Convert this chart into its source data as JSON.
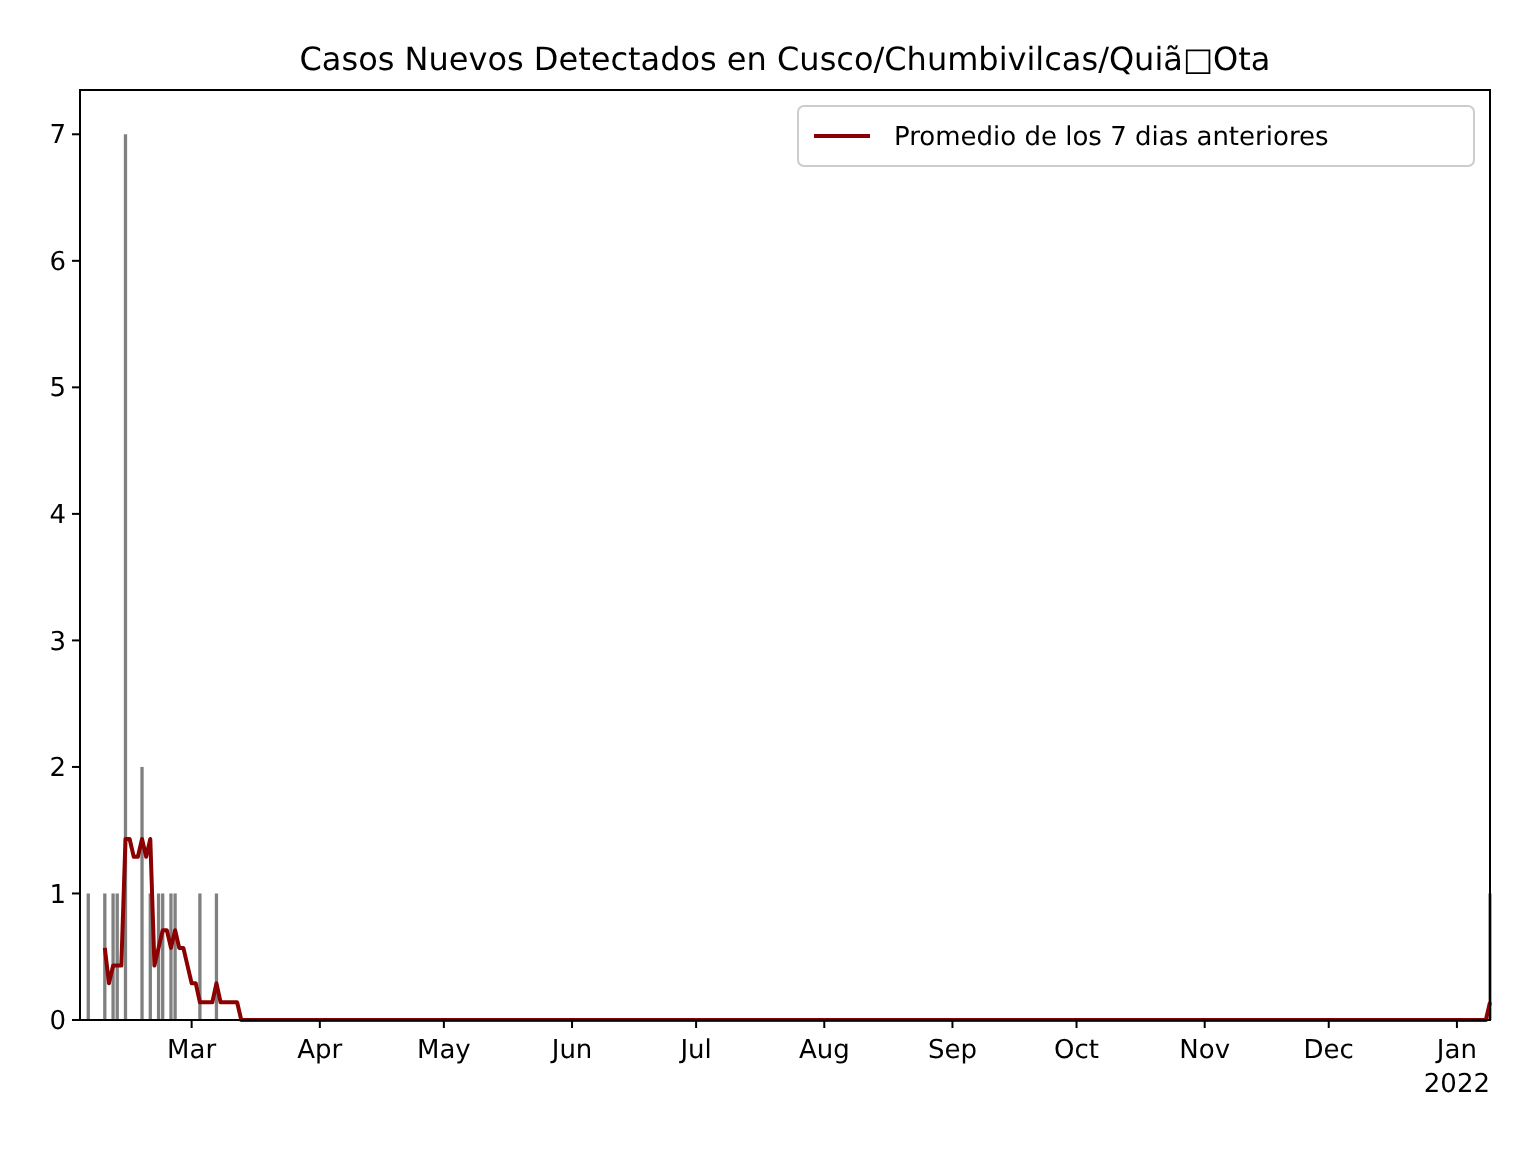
{
  "chart_data": {
    "type": "bar",
    "title": "Casos Nuevos Detectados en Cusco/Chumbivilcas/Quiã□Ota",
    "xlim": [
      "2021-02-02",
      "2022-01-09"
    ],
    "xticks": [
      {
        "value": "2021-03-01",
        "label": "Mar"
      },
      {
        "value": "2021-04-01",
        "label": "Apr"
      },
      {
        "value": "2021-05-01",
        "label": "May"
      },
      {
        "value": "2021-06-01",
        "label": "Jun"
      },
      {
        "value": "2021-07-01",
        "label": "Jul"
      },
      {
        "value": "2021-08-01",
        "label": "Aug"
      },
      {
        "value": "2021-09-01",
        "label": "Sep"
      },
      {
        "value": "2021-10-01",
        "label": "Oct"
      },
      {
        "value": "2021-11-01",
        "label": "Nov"
      },
      {
        "value": "2021-12-01",
        "label": "Dec"
      },
      {
        "value": "2022-01-01",
        "label": "Jan\n2022"
      }
    ],
    "ylim": [
      0,
      7.35
    ],
    "yticks": [
      0,
      1,
      2,
      3,
      4,
      5,
      6,
      7
    ],
    "legend": "top right",
    "series": [
      {
        "color": "#808080",
        "x": [
          "2021-02-04",
          "2021-02-08",
          "2021-02-10",
          "2021-02-11",
          "2021-02-13",
          "2021-02-17",
          "2021-02-19",
          "2021-02-21",
          "2021-02-22",
          "2021-02-24",
          "2021-02-25",
          "2021-03-03",
          "2021-03-07",
          "2022-01-09"
        ],
        "values": [
          1,
          1,
          1,
          1,
          7,
          2,
          1,
          1,
          1,
          1,
          1,
          1,
          1,
          1
        ]
      },
      {
        "type": "line",
        "name": "Promedio de los 7 dias anteriores",
        "color": "#8b0000",
        "x": [
          "2021-02-08",
          "2021-02-09",
          "2021-02-10",
          "2021-02-12",
          "2021-02-13",
          "2021-02-14",
          "2021-02-15",
          "2021-02-16",
          "2021-02-17",
          "2021-02-18",
          "2021-02-19",
          "2021-02-20",
          "2021-02-21",
          "2021-02-22",
          "2021-02-23",
          "2021-02-24",
          "2021-02-25",
          "2021-02-26",
          "2021-02-27",
          "2021-02-28",
          "2021-03-01",
          "2021-03-02",
          "2021-03-03",
          "2021-03-06",
          "2021-03-07",
          "2021-03-08",
          "2021-03-12",
          "2021-03-13",
          "2022-01-08",
          "2022-01-09"
        ],
        "values": [
          0.57,
          0.29,
          0.43,
          0.43,
          1.43,
          1.43,
          1.29,
          1.29,
          1.43,
          1.29,
          1.43,
          0.43,
          0.57,
          0.71,
          0.71,
          0.57,
          0.71,
          0.57,
          0.57,
          0.43,
          0.29,
          0.29,
          0.14,
          0.14,
          0.29,
          0.14,
          0.14,
          0,
          0,
          0.14
        ]
      }
    ]
  }
}
